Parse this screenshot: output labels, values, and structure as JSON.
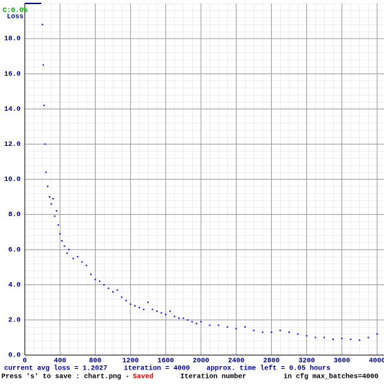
{
  "chart_data": {
    "type": "scatter",
    "accuracy_label": "C:0.0%",
    "y_label": "Loss",
    "x_label": "Iteration number",
    "status_line": "current avg loss = 1.2027    iteration = 4000    approx. time left = 0.05 hours",
    "save_prompt": "Press 's' to save : chart.png - ",
    "save_state": "Saved",
    "max_batches": "in cfg max_batches=4000",
    "color": "#0000ff",
    "grid": true,
    "xlim": [
      0,
      4000
    ],
    "ylim": [
      0,
      20
    ],
    "xticks": [
      0,
      400,
      800,
      1200,
      1600,
      2000,
      2400,
      2800,
      3200,
      3600,
      4000
    ],
    "yticks": [
      {
        "value": 0,
        "label": "0.0"
      },
      {
        "value": 2,
        "label": "2.0"
      },
      {
        "value": 4,
        "label": "4.0"
      },
      {
        "value": 6,
        "label": "6.0"
      },
      {
        "value": 8,
        "label": "8.0"
      },
      {
        "value": 10,
        "label": "10.0"
      },
      {
        "value": 12,
        "label": "12.0"
      },
      {
        "value": 14,
        "label": "14.0"
      },
      {
        "value": 16,
        "label": "16.0"
      },
      {
        "value": 18,
        "label": "18.0"
      }
    ],
    "x": [
      200,
      210,
      220,
      230,
      240,
      260,
      280,
      300,
      320,
      340,
      360,
      380,
      400,
      420,
      450,
      480,
      500,
      550,
      600,
      650,
      700,
      750,
      800,
      850,
      900,
      950,
      1000,
      1050,
      1100,
      1150,
      1200,
      1250,
      1300,
      1350,
      1400,
      1450,
      1500,
      1550,
      1600,
      1650,
      1700,
      1750,
      1800,
      1850,
      1900,
      1950,
      2000,
      2100,
      2200,
      2300,
      2400,
      2500,
      2600,
      2700,
      2800,
      2900,
      3000,
      3100,
      3200,
      3300,
      3400,
      3500,
      3600,
      3700,
      3800,
      3900,
      4000
    ],
    "values": [
      18.8,
      16.5,
      14.2,
      12.0,
      10.4,
      9.6,
      9.0,
      8.6,
      8.9,
      7.9,
      8.2,
      7.4,
      6.9,
      6.5,
      6.2,
      5.8,
      6.0,
      5.5,
      5.6,
      5.3,
      5.1,
      4.6,
      4.3,
      4.2,
      4.0,
      3.8,
      3.6,
      3.7,
      3.3,
      3.1,
      2.9,
      2.8,
      2.7,
      2.6,
      3.0,
      2.6,
      2.5,
      2.4,
      2.3,
      2.5,
      2.2,
      2.1,
      2.1,
      2.0,
      1.9,
      1.8,
      1.9,
      1.7,
      1.7,
      1.6,
      1.5,
      1.6,
      1.4,
      1.3,
      1.3,
      1.4,
      1.3,
      1.2,
      1.1,
      1.0,
      1.0,
      0.9,
      0.95,
      0.9,
      0.85,
      1.0,
      1.2
    ]
  }
}
